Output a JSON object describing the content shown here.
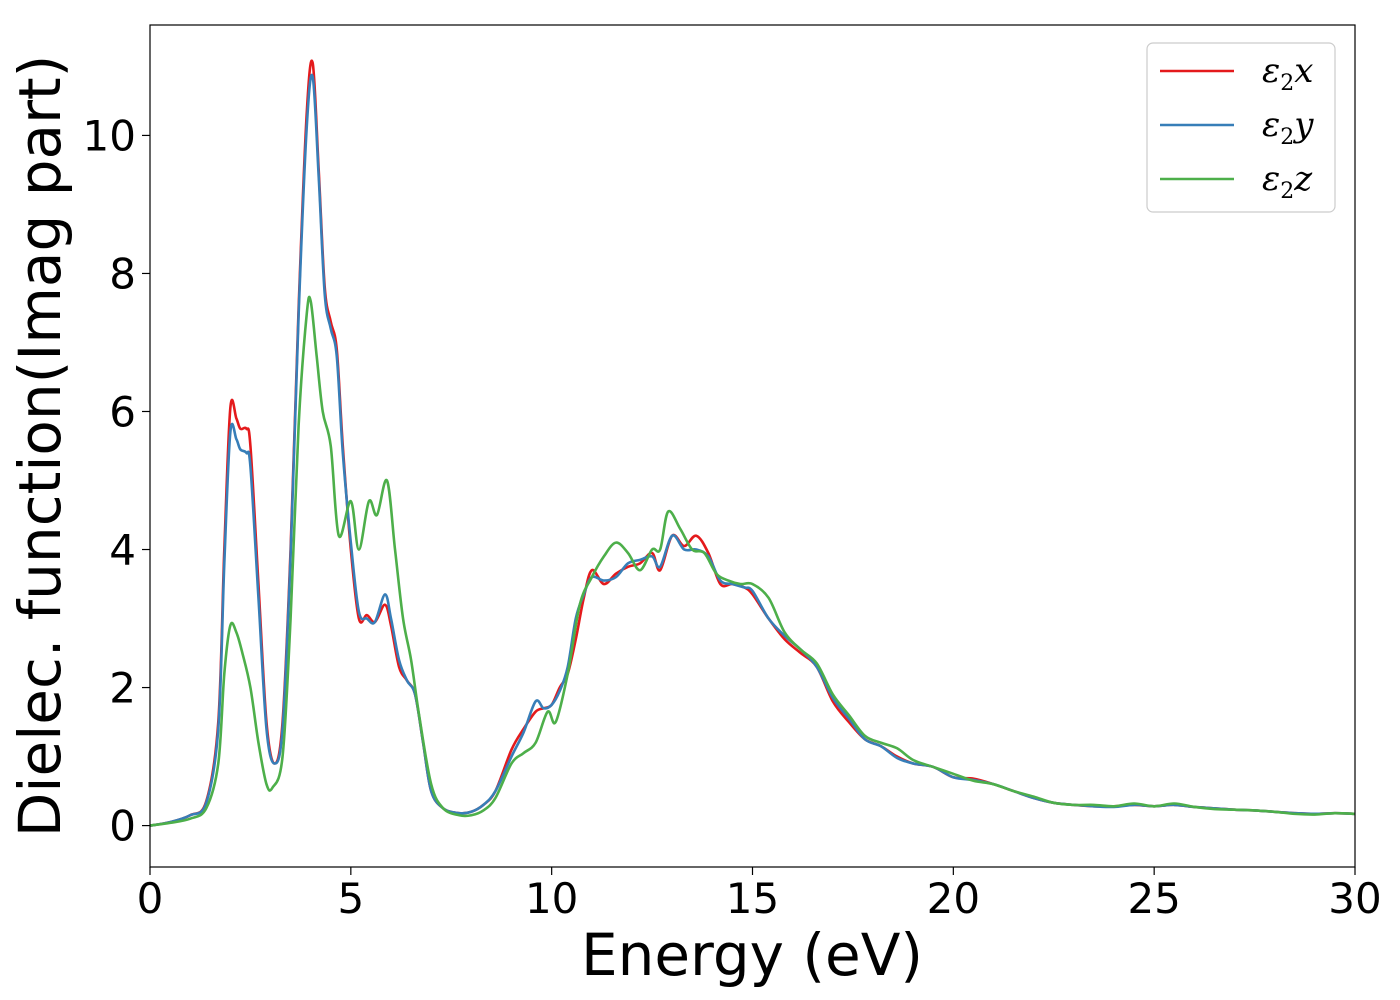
{
  "chart_data": {
    "type": "line",
    "xlabel": "Energy (eV)",
    "ylabel": "Dielec. function(Imag part)",
    "xlim": [
      0,
      30
    ],
    "ylim": [
      -0.6,
      11.6
    ],
    "xticks": [
      0,
      5,
      10,
      15,
      20,
      25,
      30
    ],
    "xtick_labels": [
      "0",
      "5",
      "10",
      "15",
      "20",
      "25",
      "30"
    ],
    "yticks": [
      0,
      2,
      4,
      6,
      8,
      10
    ],
    "ytick_labels": [
      "0",
      "2",
      "4",
      "6",
      "8",
      "10"
    ],
    "grid": false,
    "legend_position": "top-right",
    "series": [
      {
        "name": "ε2x",
        "symbol": "ε",
        "sub": "2",
        "suffix": "x",
        "color": "#e41a1c",
        "points": [
          [
            0,
            0
          ],
          [
            0.5,
            0.05
          ],
          [
            1.0,
            0.15
          ],
          [
            1.4,
            0.35
          ],
          [
            1.7,
            1.5
          ],
          [
            1.85,
            4.0
          ],
          [
            2.0,
            6.05
          ],
          [
            2.15,
            5.9
          ],
          [
            2.25,
            5.75
          ],
          [
            2.4,
            5.75
          ],
          [
            2.5,
            5.5
          ],
          [
            2.7,
            3.5
          ],
          [
            2.9,
            1.5
          ],
          [
            3.1,
            0.9
          ],
          [
            3.3,
            1.5
          ],
          [
            3.5,
            4.0
          ],
          [
            3.7,
            7.5
          ],
          [
            3.9,
            10.3
          ],
          [
            4.05,
            11.05
          ],
          [
            4.2,
            9.5
          ],
          [
            4.35,
            7.8
          ],
          [
            4.5,
            7.3
          ],
          [
            4.65,
            6.9
          ],
          [
            4.8,
            5.5
          ],
          [
            5.0,
            4.0
          ],
          [
            5.2,
            3.0
          ],
          [
            5.4,
            3.05
          ],
          [
            5.6,
            2.95
          ],
          [
            5.85,
            3.2
          ],
          [
            6.0,
            2.9
          ],
          [
            6.2,
            2.3
          ],
          [
            6.4,
            2.1
          ],
          [
            6.6,
            1.9
          ],
          [
            6.8,
            1.2
          ],
          [
            7.0,
            0.5
          ],
          [
            7.3,
            0.25
          ],
          [
            7.7,
            0.18
          ],
          [
            8.0,
            0.2
          ],
          [
            8.3,
            0.3
          ],
          [
            8.6,
            0.5
          ],
          [
            9.0,
            1.1
          ],
          [
            9.3,
            1.4
          ],
          [
            9.6,
            1.65
          ],
          [
            9.8,
            1.7
          ],
          [
            10.0,
            1.75
          ],
          [
            10.2,
            2.0
          ],
          [
            10.4,
            2.2
          ],
          [
            10.6,
            2.7
          ],
          [
            10.8,
            3.3
          ],
          [
            11.0,
            3.7
          ],
          [
            11.3,
            3.5
          ],
          [
            11.6,
            3.65
          ],
          [
            11.9,
            3.75
          ],
          [
            12.2,
            3.8
          ],
          [
            12.5,
            3.95
          ],
          [
            12.7,
            3.7
          ],
          [
            13.0,
            4.2
          ],
          [
            13.3,
            4.05
          ],
          [
            13.6,
            4.2
          ],
          [
            13.9,
            3.95
          ],
          [
            14.2,
            3.5
          ],
          [
            14.5,
            3.5
          ],
          [
            14.8,
            3.45
          ],
          [
            15.0,
            3.35
          ],
          [
            15.4,
            3.0
          ],
          [
            15.8,
            2.7
          ],
          [
            16.2,
            2.5
          ],
          [
            16.6,
            2.3
          ],
          [
            17.0,
            1.8
          ],
          [
            17.4,
            1.5
          ],
          [
            17.8,
            1.25
          ],
          [
            18.2,
            1.15
          ],
          [
            18.6,
            1.0
          ],
          [
            19.0,
            0.9
          ],
          [
            19.5,
            0.85
          ],
          [
            20.0,
            0.7
          ],
          [
            20.5,
            0.68
          ],
          [
            21.0,
            0.6
          ],
          [
            21.5,
            0.5
          ],
          [
            22.0,
            0.4
          ],
          [
            22.5,
            0.33
          ],
          [
            23.0,
            0.3
          ],
          [
            23.5,
            0.28
          ],
          [
            24.0,
            0.28
          ],
          [
            24.5,
            0.3
          ],
          [
            25.0,
            0.28
          ],
          [
            25.5,
            0.3
          ],
          [
            26.0,
            0.27
          ],
          [
            26.5,
            0.25
          ],
          [
            27.0,
            0.23
          ],
          [
            27.5,
            0.22
          ],
          [
            28.0,
            0.2
          ],
          [
            28.5,
            0.18
          ],
          [
            29.0,
            0.17
          ],
          [
            29.5,
            0.18
          ],
          [
            30.0,
            0.17
          ]
        ]
      },
      {
        "name": "ε2y",
        "symbol": "ε",
        "sub": "2",
        "suffix": "y",
        "color": "#377eb8",
        "points": [
          [
            0,
            0
          ],
          [
            0.5,
            0.05
          ],
          [
            1.0,
            0.15
          ],
          [
            1.4,
            0.33
          ],
          [
            1.7,
            1.4
          ],
          [
            1.85,
            3.8
          ],
          [
            2.0,
            5.7
          ],
          [
            2.15,
            5.6
          ],
          [
            2.25,
            5.45
          ],
          [
            2.4,
            5.4
          ],
          [
            2.5,
            5.2
          ],
          [
            2.7,
            3.3
          ],
          [
            2.9,
            1.4
          ],
          [
            3.1,
            0.9
          ],
          [
            3.3,
            1.4
          ],
          [
            3.5,
            3.9
          ],
          [
            3.7,
            7.4
          ],
          [
            3.9,
            10.1
          ],
          [
            4.05,
            10.85
          ],
          [
            4.2,
            9.4
          ],
          [
            4.35,
            7.7
          ],
          [
            4.5,
            7.2
          ],
          [
            4.65,
            6.8
          ],
          [
            4.8,
            5.4
          ],
          [
            5.0,
            4.1
          ],
          [
            5.2,
            3.1
          ],
          [
            5.4,
            3.0
          ],
          [
            5.6,
            2.95
          ],
          [
            5.85,
            3.35
          ],
          [
            6.0,
            3.0
          ],
          [
            6.2,
            2.4
          ],
          [
            6.4,
            2.1
          ],
          [
            6.6,
            1.9
          ],
          [
            6.8,
            1.2
          ],
          [
            7.0,
            0.5
          ],
          [
            7.3,
            0.25
          ],
          [
            7.7,
            0.18
          ],
          [
            8.0,
            0.2
          ],
          [
            8.3,
            0.3
          ],
          [
            8.6,
            0.5
          ],
          [
            9.0,
            1.0
          ],
          [
            9.3,
            1.35
          ],
          [
            9.6,
            1.8
          ],
          [
            9.8,
            1.7
          ],
          [
            10.0,
            1.75
          ],
          [
            10.2,
            1.95
          ],
          [
            10.4,
            2.3
          ],
          [
            10.6,
            3.0
          ],
          [
            10.8,
            3.35
          ],
          [
            11.0,
            3.6
          ],
          [
            11.3,
            3.55
          ],
          [
            11.6,
            3.6
          ],
          [
            11.9,
            3.8
          ],
          [
            12.2,
            3.85
          ],
          [
            12.5,
            3.9
          ],
          [
            12.7,
            3.75
          ],
          [
            13.0,
            4.2
          ],
          [
            13.3,
            4.0
          ],
          [
            13.6,
            4.0
          ],
          [
            13.9,
            3.9
          ],
          [
            14.2,
            3.55
          ],
          [
            14.5,
            3.5
          ],
          [
            14.8,
            3.45
          ],
          [
            15.0,
            3.4
          ],
          [
            15.4,
            3.0
          ],
          [
            15.8,
            2.75
          ],
          [
            16.2,
            2.55
          ],
          [
            16.6,
            2.3
          ],
          [
            17.0,
            1.85
          ],
          [
            17.4,
            1.55
          ],
          [
            17.8,
            1.25
          ],
          [
            18.2,
            1.15
          ],
          [
            18.6,
            0.98
          ],
          [
            19.0,
            0.9
          ],
          [
            19.5,
            0.85
          ],
          [
            20.0,
            0.7
          ],
          [
            20.5,
            0.66
          ],
          [
            21.0,
            0.6
          ],
          [
            21.5,
            0.5
          ],
          [
            22.0,
            0.4
          ],
          [
            22.5,
            0.33
          ],
          [
            23.0,
            0.3
          ],
          [
            23.5,
            0.28
          ],
          [
            24.0,
            0.27
          ],
          [
            24.5,
            0.3
          ],
          [
            25.0,
            0.28
          ],
          [
            25.5,
            0.3
          ],
          [
            26.0,
            0.27
          ],
          [
            26.5,
            0.25
          ],
          [
            27.0,
            0.23
          ],
          [
            27.5,
            0.22
          ],
          [
            28.0,
            0.2
          ],
          [
            28.5,
            0.18
          ],
          [
            29.0,
            0.17
          ],
          [
            29.5,
            0.18
          ],
          [
            30.0,
            0.17
          ]
        ]
      },
      {
        "name": "ε2z",
        "symbol": "ε",
        "sub": "2",
        "suffix": "z",
        "color": "#4daf4a",
        "points": [
          [
            0,
            0
          ],
          [
            0.5,
            0.04
          ],
          [
            1.0,
            0.1
          ],
          [
            1.4,
            0.25
          ],
          [
            1.7,
            0.9
          ],
          [
            1.85,
            2.2
          ],
          [
            2.0,
            2.9
          ],
          [
            2.15,
            2.8
          ],
          [
            2.3,
            2.5
          ],
          [
            2.5,
            2.0
          ],
          [
            2.7,
            1.2
          ],
          [
            2.9,
            0.6
          ],
          [
            3.05,
            0.55
          ],
          [
            3.3,
            1.0
          ],
          [
            3.5,
            3.0
          ],
          [
            3.7,
            5.8
          ],
          [
            3.9,
            7.4
          ],
          [
            4.0,
            7.6
          ],
          [
            4.15,
            6.8
          ],
          [
            4.3,
            6.0
          ],
          [
            4.5,
            5.5
          ],
          [
            4.7,
            4.2
          ],
          [
            5.0,
            4.7
          ],
          [
            5.2,
            4.0
          ],
          [
            5.45,
            4.7
          ],
          [
            5.65,
            4.5
          ],
          [
            5.9,
            5.0
          ],
          [
            6.1,
            4.0
          ],
          [
            6.3,
            3.0
          ],
          [
            6.5,
            2.4
          ],
          [
            6.7,
            1.6
          ],
          [
            7.0,
            0.6
          ],
          [
            7.3,
            0.25
          ],
          [
            7.7,
            0.15
          ],
          [
            8.0,
            0.15
          ],
          [
            8.3,
            0.22
          ],
          [
            8.6,
            0.4
          ],
          [
            9.0,
            0.9
          ],
          [
            9.3,
            1.05
          ],
          [
            9.6,
            1.2
          ],
          [
            9.9,
            1.65
          ],
          [
            10.1,
            1.5
          ],
          [
            10.4,
            2.2
          ],
          [
            10.7,
            3.2
          ],
          [
            11.0,
            3.6
          ],
          [
            11.3,
            3.9
          ],
          [
            11.6,
            4.1
          ],
          [
            11.9,
            3.95
          ],
          [
            12.2,
            3.7
          ],
          [
            12.5,
            4.0
          ],
          [
            12.7,
            4.0
          ],
          [
            12.9,
            4.55
          ],
          [
            13.2,
            4.3
          ],
          [
            13.5,
            4.0
          ],
          [
            13.8,
            3.95
          ],
          [
            14.1,
            3.65
          ],
          [
            14.4,
            3.55
          ],
          [
            14.7,
            3.5
          ],
          [
            15.0,
            3.5
          ],
          [
            15.4,
            3.3
          ],
          [
            15.8,
            2.8
          ],
          [
            16.2,
            2.55
          ],
          [
            16.6,
            2.35
          ],
          [
            17.0,
            1.9
          ],
          [
            17.4,
            1.6
          ],
          [
            17.8,
            1.3
          ],
          [
            18.2,
            1.2
          ],
          [
            18.6,
            1.12
          ],
          [
            19.0,
            0.95
          ],
          [
            19.5,
            0.85
          ],
          [
            20.0,
            0.75
          ],
          [
            20.5,
            0.65
          ],
          [
            21.0,
            0.6
          ],
          [
            21.5,
            0.5
          ],
          [
            22.0,
            0.42
          ],
          [
            22.5,
            0.33
          ],
          [
            23.0,
            0.3
          ],
          [
            23.5,
            0.3
          ],
          [
            24.0,
            0.28
          ],
          [
            24.5,
            0.32
          ],
          [
            25.0,
            0.28
          ],
          [
            25.5,
            0.32
          ],
          [
            26.0,
            0.27
          ],
          [
            26.5,
            0.24
          ],
          [
            27.0,
            0.23
          ],
          [
            27.5,
            0.22
          ],
          [
            28.0,
            0.2
          ],
          [
            28.5,
            0.17
          ],
          [
            29.0,
            0.16
          ],
          [
            29.5,
            0.18
          ],
          [
            30.0,
            0.17
          ]
        ]
      }
    ]
  }
}
